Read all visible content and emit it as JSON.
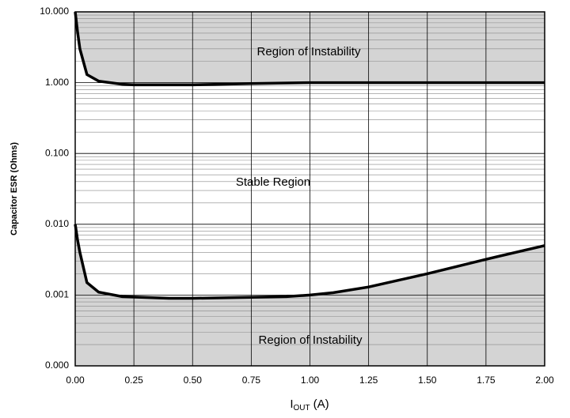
{
  "chart_data": {
    "type": "line",
    "ylabel": "Capacitor ESR (Ohms)",
    "xlabel": "I",
    "xlabel_sub": "OUT",
    "xlabel_unit": "(A)",
    "xlim": [
      0,
      2
    ],
    "ylim": [
      0.0001,
      10
    ],
    "log_y": true,
    "grid": true,
    "minor_grid": true,
    "xticks": [
      {
        "value": 0,
        "label": "0.00"
      },
      0.25,
      {
        "value": 0.5,
        "label": "0.50"
      },
      0.75,
      {
        "value": 1,
        "label": "1.00"
      },
      1.25,
      {
        "value": 1.5,
        "label": "1.50"
      },
      1.75,
      {
        "value": 2,
        "label": "2.00"
      }
    ],
    "yticks": [
      {
        "value": 0.0001,
        "label": "0.000"
      },
      {
        "value": 0.001,
        "label": "0.001"
      },
      {
        "value": 0.01,
        "label": "0.010"
      },
      {
        "value": 0.1,
        "label": "0.100"
      },
      {
        "value": 1,
        "label": "1.000"
      },
      {
        "value": 10,
        "label": "10.000"
      }
    ],
    "fill_color": "#d4d4d4",
    "series": [
      {
        "color": "#000000",
        "fill": "above",
        "x": [
          0,
          0.01,
          0.02,
          0.05,
          0.1,
          0.2,
          0.25,
          0.5,
          0.75,
          1,
          2
        ],
        "values": [
          10,
          5.2,
          3,
          1.3,
          1.05,
          0.95,
          0.93,
          0.93,
          0.97,
          1,
          1
        ]
      },
      {
        "color": "#000000",
        "fill": "below",
        "x": [
          0,
          0.01,
          0.02,
          0.05,
          0.1,
          0.2,
          0.4,
          0.5,
          0.75,
          0.9,
          1,
          1.1,
          1.25,
          1.5,
          1.75,
          2
        ],
        "values": [
          0.01,
          0.006,
          0.004,
          0.0015,
          0.0011,
          0.00095,
          0.0009,
          0.0009,
          0.00093,
          0.00095,
          0.001,
          0.00108,
          0.0013,
          0.002,
          0.0032,
          0.005
        ]
      }
    ],
    "annotations": [
      "Region of Instability",
      "Stable Region",
      "Region of Instability"
    ]
  }
}
